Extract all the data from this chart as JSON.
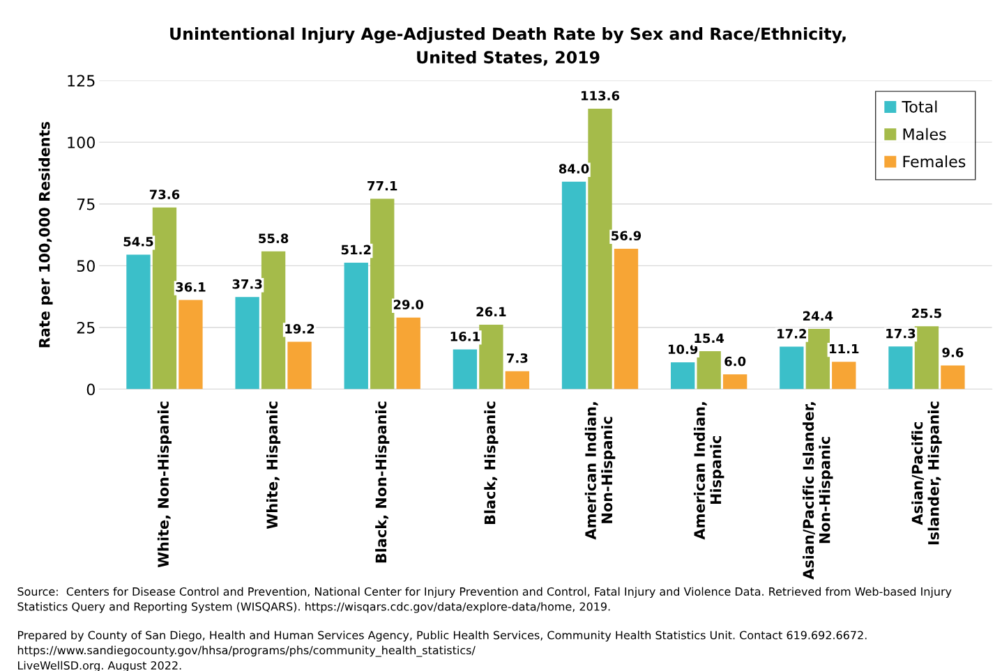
{
  "chart_data": {
    "type": "bar",
    "title": "Unintentional Injury Age-Adjusted Death Rate by Sex and Race/Ethnicity,\nUnited States, 2019",
    "ylabel": "Rate per 100,000 Residents",
    "categories": [
      "White, Non-Hispanic",
      "White, Hispanic",
      "Black, Non-Hispanic",
      "Black, Hispanic",
      "American Indian,\nNon-Hispanic",
      "American Indian,\nHispanic",
      "Asian/Pacific Islander,\nNon-Hispanic",
      "Asian/Pacific\nIslander, Hispanic"
    ],
    "series": [
      {
        "name": "Total",
        "color": "#3bbfc9",
        "values": [
          54.5,
          37.3,
          51.2,
          16.1,
          84.0,
          10.9,
          17.2,
          17.3
        ],
        "value_labels": [
          "54.5",
          "37.3",
          "51.2",
          "16.1",
          "84.0",
          "10.9",
          "17.2",
          "17.3"
        ]
      },
      {
        "name": "Males",
        "color": "#a5bb4a",
        "values": [
          73.6,
          55.8,
          77.1,
          26.1,
          113.6,
          15.4,
          24.4,
          25.5
        ],
        "value_labels": [
          "73.6",
          "55.8",
          "77.1",
          "26.1",
          "113.6",
          "15.4",
          "24.4",
          "25.5"
        ]
      },
      {
        "name": "Females",
        "color": "#f7a535",
        "values": [
          36.1,
          19.2,
          29.0,
          7.3,
          56.9,
          6.0,
          11.1,
          9.6
        ],
        "value_labels": [
          "36.1",
          "19.2",
          "29.0",
          "7.3",
          "56.9",
          "6.0",
          "11.1",
          "9.6"
        ]
      }
    ],
    "ylim": [
      0,
      125
    ],
    "yticks": [
      0,
      25,
      50,
      75,
      100,
      125
    ],
    "grid": "y",
    "legend": "top right",
    "annotations": [
      "Source:  Centers for Disease Control and Prevention, National Center for Injury Prevention and Control, Fatal Injury and Violence Data. Retrieved from Web-based Injury Statistics Query and Reporting System (WISQARS). https://wisqars.cdc.gov/data/explore-data/home, 2019.",
      "Prepared by County of San Diego, Health and Human Services Agency, Public Health Services, Community Health Statistics Unit. Contact 619.692.6672.\nhttps://www.sandiegocounty.gov/hhsa/programs/phs/community_health_statistics/\nLiveWellSD.org. August 2022."
    ]
  }
}
